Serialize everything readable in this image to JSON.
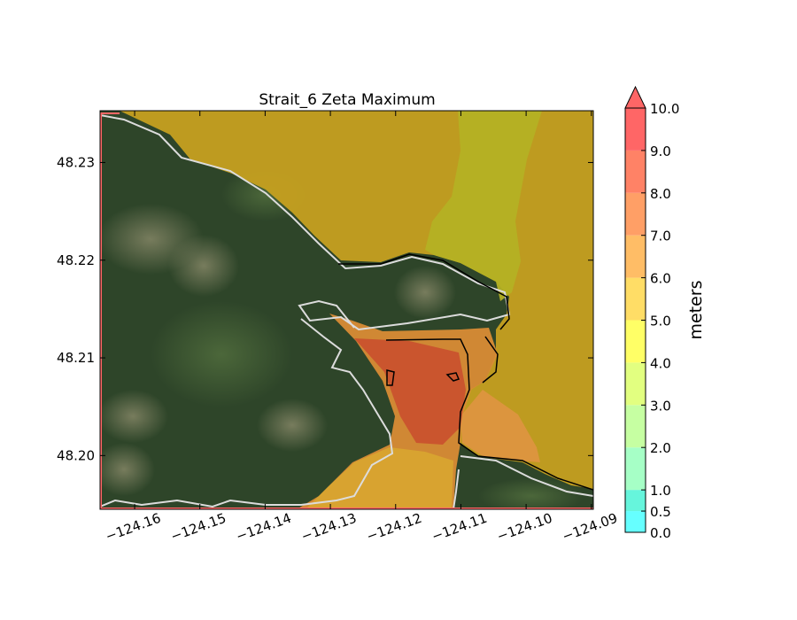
{
  "title": "Strait_6 Zeta Maximum",
  "map": {
    "xlim": [
      -124.1653,
      -124.0897
    ],
    "ylim": [
      48.1945,
      48.2353
    ],
    "xticks": [
      -124.16,
      -124.15,
      -124.14,
      -124.13,
      -124.12,
      -124.11,
      -124.1,
      -124.09
    ],
    "xtick_labels": [
      "−124.16",
      "−124.15",
      "−124.14",
      "−124.13",
      "−124.12",
      "−124.11",
      "−124.10",
      "−124.09"
    ],
    "yticks": [
      48.2,
      48.21,
      48.22,
      48.23
    ],
    "ytick_labels": [
      "48.20",
      "48.21",
      "48.22",
      "48.23"
    ],
    "basemap": "satellite imagery"
  },
  "colorbar": {
    "label": "meters",
    "extend": "max",
    "levels": [
      0,
      0.5,
      1,
      2,
      3,
      4,
      5,
      6,
      7,
      8,
      9,
      10
    ],
    "tick_labels": [
      "0.0",
      "0.5",
      "1.0",
      "2.0",
      "3.0",
      "4.0",
      "5.0",
      "6.0",
      "7.0",
      "8.0",
      "9.0",
      "10.0"
    ],
    "colors": [
      "#66ffff",
      "#66f5dc",
      "#a6ffc6",
      "#c6ffa2",
      "#e2ff80",
      "#ffff66",
      "#ffdd66",
      "#ffbd66",
      "#ff9f66",
      "#ff8266",
      "#ff6666"
    ],
    "extend_color": "#ff6666"
  }
}
